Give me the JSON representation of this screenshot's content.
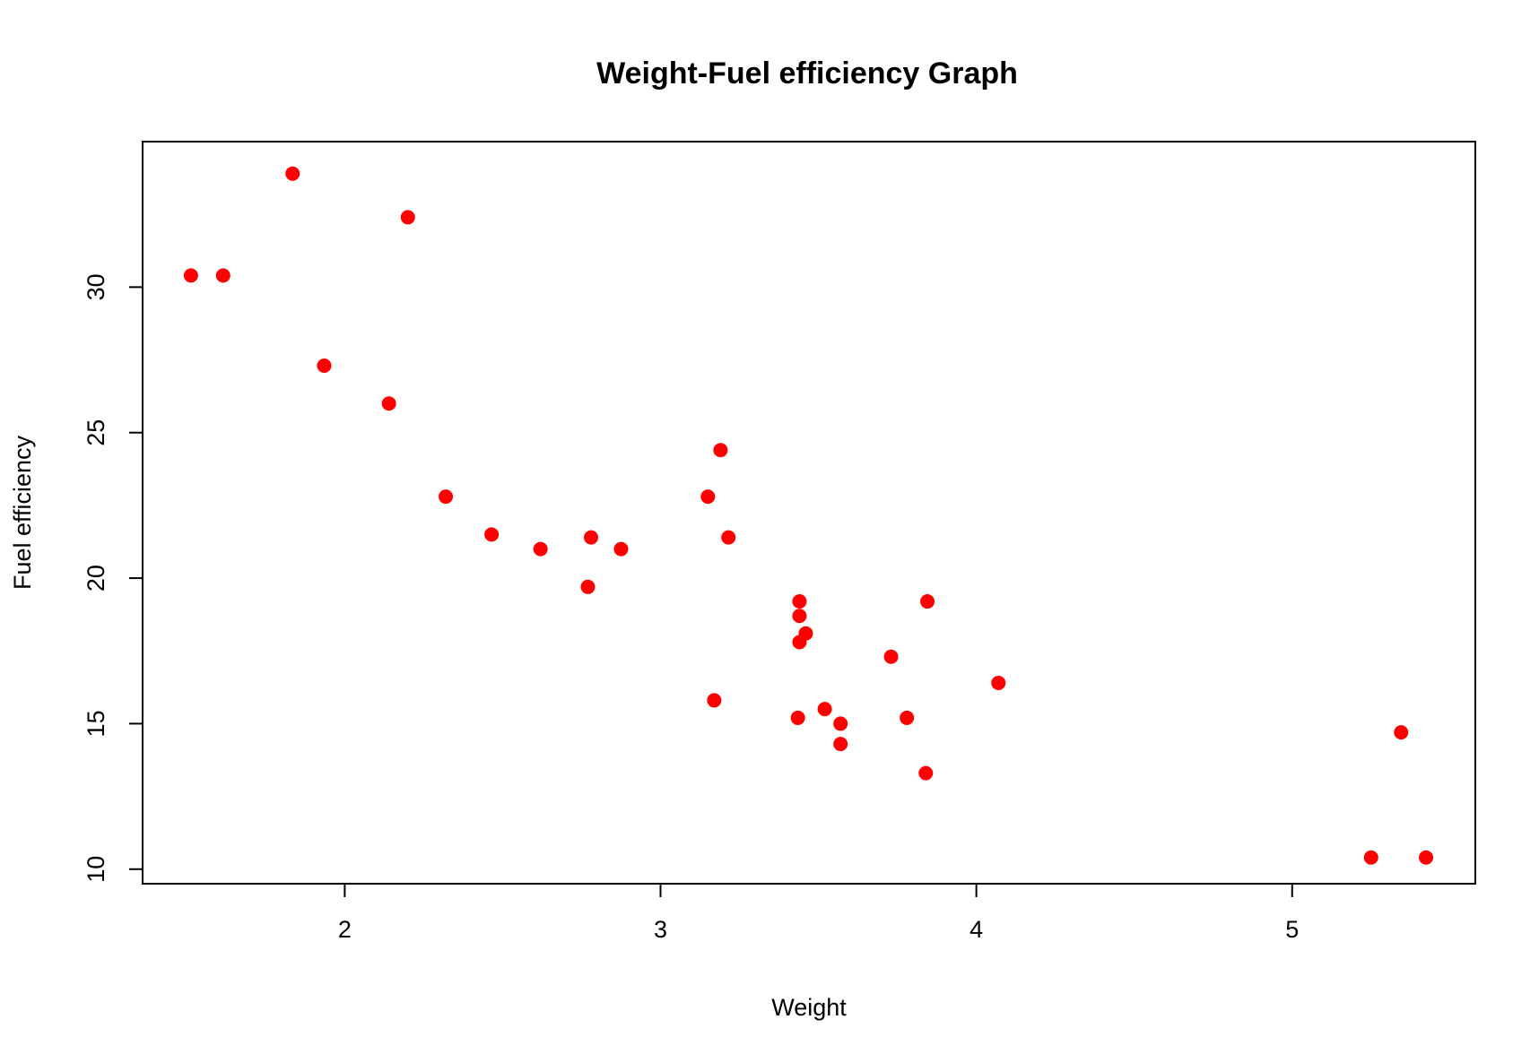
{
  "chart_data": {
    "type": "scatter",
    "title": "Weight-Fuel efficiency Graph",
    "xlabel": "Weight",
    "ylabel": "Fuel efficiency",
    "xlim": [
      1.36,
      5.58
    ],
    "ylim": [
      9.5,
      35.0
    ],
    "xticks": [
      2,
      3,
      4,
      5
    ],
    "yticks": [
      10,
      15,
      20,
      25,
      30
    ],
    "grid": false,
    "legend": "none",
    "point_color": "#ff0000",
    "points": [
      {
        "x": 1.513,
        "y": 30.4
      },
      {
        "x": 1.615,
        "y": 30.4
      },
      {
        "x": 1.835,
        "y": 33.9
      },
      {
        "x": 1.935,
        "y": 27.3
      },
      {
        "x": 2.14,
        "y": 26.0
      },
      {
        "x": 2.2,
        "y": 32.4
      },
      {
        "x": 2.32,
        "y": 22.8
      },
      {
        "x": 2.465,
        "y": 21.5
      },
      {
        "x": 2.62,
        "y": 21.0
      },
      {
        "x": 2.77,
        "y": 19.7
      },
      {
        "x": 2.78,
        "y": 21.4
      },
      {
        "x": 2.875,
        "y": 21.0
      },
      {
        "x": 3.15,
        "y": 22.8
      },
      {
        "x": 3.17,
        "y": 15.8
      },
      {
        "x": 3.19,
        "y": 24.4
      },
      {
        "x": 3.215,
        "y": 21.4
      },
      {
        "x": 3.435,
        "y": 15.2
      },
      {
        "x": 3.44,
        "y": 19.2
      },
      {
        "x": 3.44,
        "y": 18.7
      },
      {
        "x": 3.44,
        "y": 17.8
      },
      {
        "x": 3.46,
        "y": 18.1
      },
      {
        "x": 3.52,
        "y": 15.5
      },
      {
        "x": 3.57,
        "y": 15.0
      },
      {
        "x": 3.57,
        "y": 14.3
      },
      {
        "x": 3.73,
        "y": 17.3
      },
      {
        "x": 3.78,
        "y": 15.2
      },
      {
        "x": 3.84,
        "y": 13.3
      },
      {
        "x": 3.845,
        "y": 19.2
      },
      {
        "x": 4.07,
        "y": 16.4
      },
      {
        "x": 5.25,
        "y": 10.4
      },
      {
        "x": 5.345,
        "y": 14.7
      },
      {
        "x": 5.424,
        "y": 10.4
      }
    ]
  }
}
